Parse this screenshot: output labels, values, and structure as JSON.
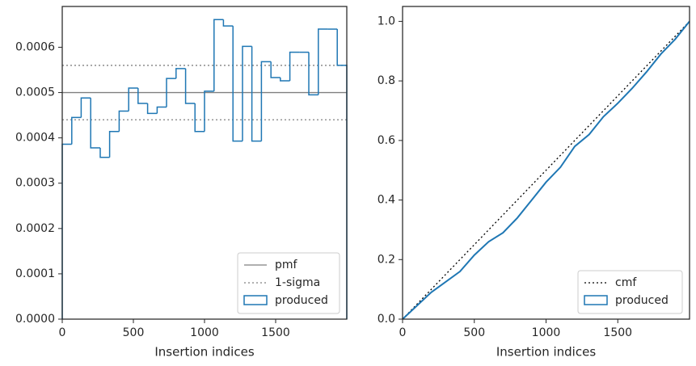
{
  "chart_data": [
    {
      "type": "histogram",
      "xlabel": "Insertion indices",
      "bins": [
        0,
        67,
        133,
        200,
        267,
        333,
        400,
        467,
        533,
        600,
        667,
        733,
        800,
        867,
        933,
        1000,
        1067,
        1133,
        1200,
        1267,
        1333,
        1400,
        1467,
        1533,
        1600,
        1667,
        1733,
        1800,
        1867,
        1933,
        2000
      ],
      "series": [
        {
          "name": "produced",
          "color": "#1f77b4",
          "values": [
            0.000386,
            0.000445,
            0.000488,
            0.000378,
            0.000357,
            0.000414,
            0.000459,
            0.00051,
            0.000476,
            0.000454,
            0.000468,
            0.000531,
            0.000553,
            0.000476,
            0.000414,
            0.000503,
            0.000661,
            0.000647,
            0.000393,
            0.000602,
            0.000393,
            0.000568,
            0.000533,
            0.000526,
            0.000589,
            0.000589,
            0.000495,
            0.00064,
            0.00064,
            0.00056
          ]
        }
      ],
      "lines": [
        {
          "name": "pmf",
          "values": [
            0.0005
          ],
          "color": "#808080",
          "dash": false
        },
        {
          "name": "1-sigma",
          "values": [
            0.00044,
            0.00056
          ],
          "color": "#808080",
          "dash": true
        }
      ],
      "xlim": [
        0,
        2000
      ],
      "xticks": [
        0,
        500,
        1000,
        1500
      ],
      "ylim": [
        0,
        0.00069
      ],
      "yticks": [
        {
          "value": 0,
          "label": "0.0000"
        },
        {
          "value": 0.0001,
          "label": "0.0001"
        },
        {
          "value": 0.0002,
          "label": "0.0002"
        },
        {
          "value": 0.0003,
          "label": "0.0003"
        },
        {
          "value": 0.0004,
          "label": "0.0004"
        },
        {
          "value": 0.0005,
          "label": "0.0005"
        },
        {
          "value": 0.0006,
          "label": "0.0006"
        }
      ],
      "legend": "lower right"
    },
    {
      "type": "line",
      "xlabel": "Insertion indices",
      "series": [
        {
          "name": "cmf",
          "color": "#000000",
          "dash": true,
          "x": [
            0,
            2000
          ],
          "values": [
            0,
            1
          ]
        },
        {
          "name": "produced",
          "color": "#1f77b4",
          "dash": false,
          "x": [
            0,
            100,
            200,
            300,
            400,
            500,
            600,
            700,
            800,
            900,
            1000,
            1100,
            1200,
            1300,
            1400,
            1500,
            1600,
            1700,
            1800,
            1900,
            2000
          ],
          "values": [
            0,
            0.045,
            0.09,
            0.125,
            0.16,
            0.215,
            0.26,
            0.29,
            0.34,
            0.4,
            0.46,
            0.51,
            0.58,
            0.62,
            0.68,
            0.725,
            0.775,
            0.83,
            0.89,
            0.94,
            1.0
          ]
        }
      ],
      "xlim": [
        0,
        2000
      ],
      "xticks": [
        0,
        500,
        1000,
        1500
      ],
      "ylim": [
        0,
        1.05
      ],
      "yticks": [
        {
          "value": 0,
          "label": "0.0"
        },
        {
          "value": 0.2,
          "label": "0.2"
        },
        {
          "value": 0.4,
          "label": "0.4"
        },
        {
          "value": 0.6,
          "label": "0.6"
        },
        {
          "value": 0.8,
          "label": "0.8"
        },
        {
          "value": 1.0,
          "label": "1.0"
        }
      ],
      "legend": "lower right"
    }
  ]
}
